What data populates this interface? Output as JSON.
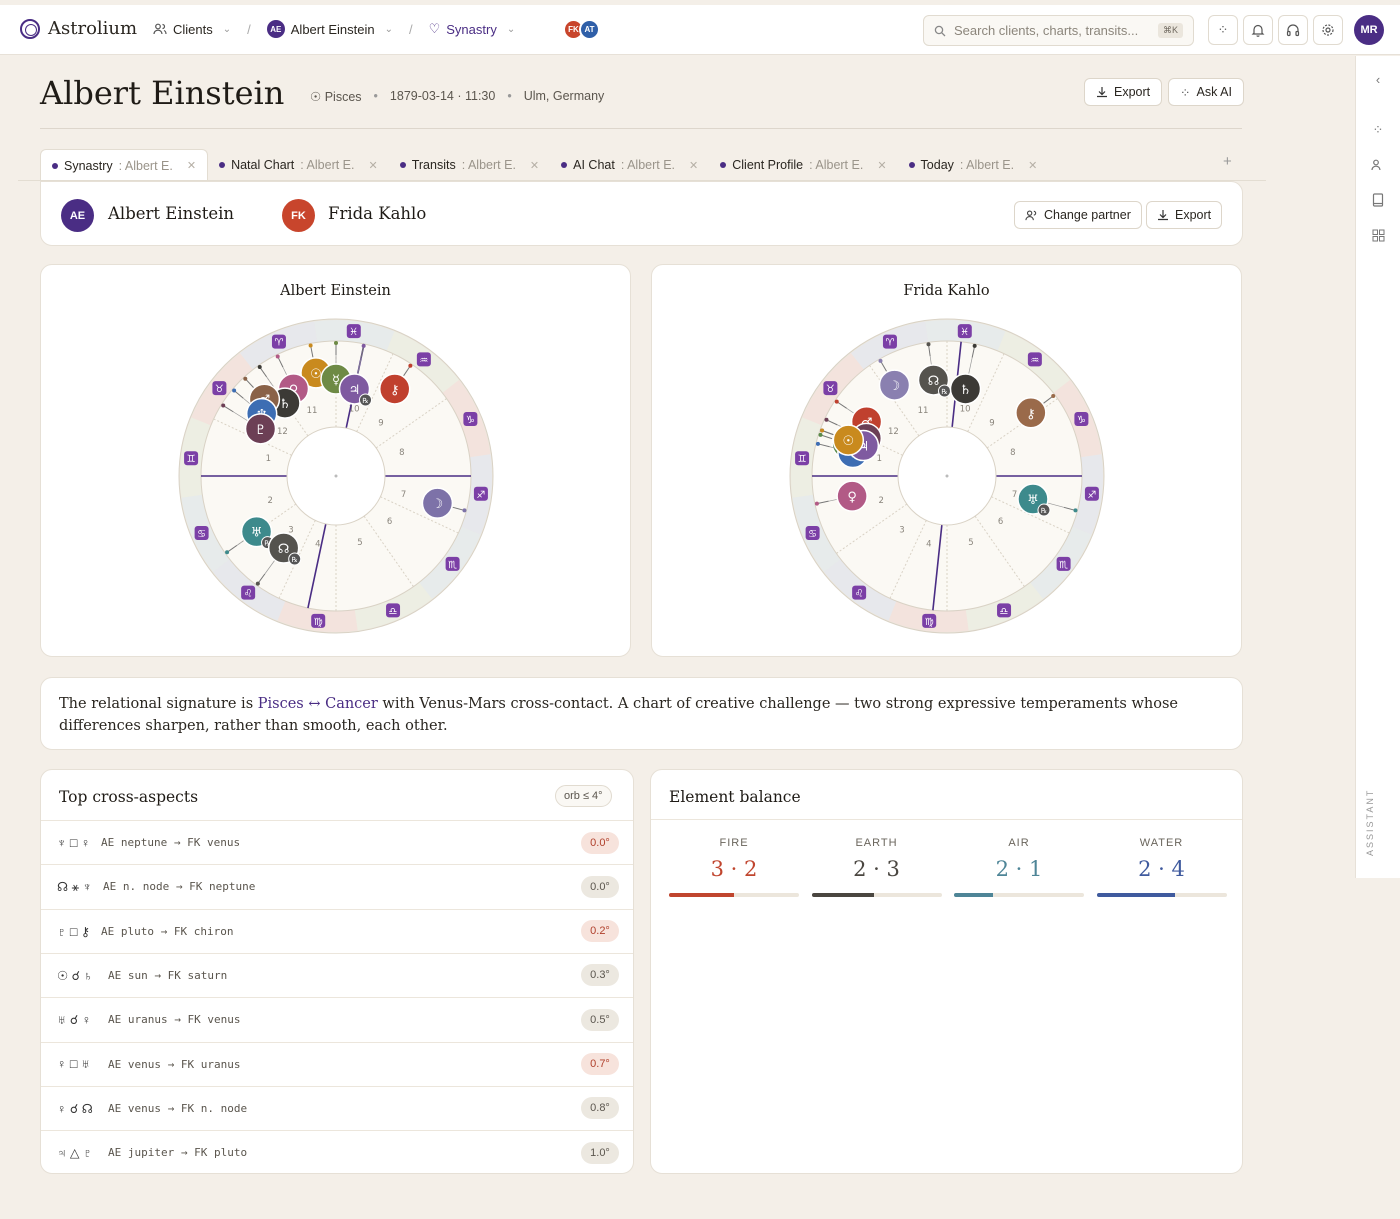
{
  "app": {
    "name": "Astrolium"
  },
  "breadcrumb": {
    "clients": "Clients",
    "client_initials": "AE",
    "client": "Albert Einstein",
    "view": "Synastry"
  },
  "header_pair": {
    "a": "FK",
    "b": "AT",
    "a_color": "#c8452c",
    "b_color": "#2f5fa8"
  },
  "search": {
    "placeholder": "Search clients, charts, transits...",
    "shortcut": "⌘K"
  },
  "user": {
    "initials": "MR"
  },
  "rail": {
    "label": "ASSISTANT"
  },
  "page": {
    "title": "Albert Einstein",
    "sign": "Pisces",
    "datetime": "1879-03-14 · 11:30",
    "place": "Ulm, Germany",
    "export": "Export",
    "ask_ai": "Ask AI"
  },
  "tabs": [
    {
      "label": "Synastry",
      "sub": ": Albert E."
    },
    {
      "label": "Natal Chart",
      "sub": ": Albert E."
    },
    {
      "label": "Transits",
      "sub": ": Albert E."
    },
    {
      "label": "AI Chat",
      "sub": ": Albert E."
    },
    {
      "label": "Client Profile",
      "sub": ": Albert E."
    },
    {
      "label": "Today",
      "sub": ": Albert E."
    }
  ],
  "synastry": {
    "person_a": {
      "initials": "AE",
      "name": "Albert Einstein",
      "color": "#4a2d84"
    },
    "person_b": {
      "initials": "FK",
      "name": "Frida Kahlo",
      "color": "#c8452c"
    },
    "change_partner": "Change partner",
    "export": "Export"
  },
  "charts": [
    {
      "title": "Albert Einstein",
      "mc_angle": 78,
      "ic_angle": 258,
      "planets": [
        {
          "glyph": "☉",
          "lon": 101,
          "color": "#c98a1e",
          "retro": false
        },
        {
          "glyph": "☿",
          "lon": 90,
          "color": "#6e8a45",
          "retro": false
        },
        {
          "glyph": "♃",
          "lon": 78,
          "color": "#7f5aa0",
          "retro": true
        },
        {
          "glyph": "⚷",
          "lon": 56,
          "color": "#c0402e",
          "retro": false
        },
        {
          "glyph": "♀",
          "lon": 116,
          "color": "#b25a86",
          "retro": false
        },
        {
          "glyph": "♄",
          "lon": 125,
          "color": "#3c3a36",
          "retro": false
        },
        {
          "glyph": "♂",
          "lon": 133,
          "color": "#8a6248",
          "retro": false
        },
        {
          "glyph": "♆",
          "lon": 140,
          "color": "#3d6db3",
          "retro": false
        },
        {
          "glyph": "♇",
          "lon": 148,
          "color": "#6c3f55",
          "retro": false
        },
        {
          "glyph": "☽",
          "lon": 345,
          "color": "#7d72a8",
          "retro": false
        },
        {
          "glyph": "♅",
          "lon": 215,
          "color": "#3d8a8c",
          "retro": true
        },
        {
          "glyph": "☊",
          "lon": 234,
          "color": "#55534e",
          "retro": true
        }
      ]
    },
    {
      "title": "Frida Kahlo",
      "mc_angle": 84,
      "ic_angle": 264,
      "planets": [
        {
          "glyph": "☽",
          "lon": 120,
          "color": "#8a80b0",
          "retro": false
        },
        {
          "glyph": "☊",
          "lon": 98,
          "color": "#55534e",
          "retro": true
        },
        {
          "glyph": "♄",
          "lon": 78,
          "color": "#3c3a36",
          "retro": false
        },
        {
          "glyph": "⚷",
          "lon": 37,
          "color": "#9a6a4a",
          "retro": false
        },
        {
          "glyph": "♂",
          "lon": 146,
          "color": "#c0402e",
          "retro": false
        },
        {
          "glyph": "♇",
          "lon": 155,
          "color": "#6c3f55",
          "retro": false
        },
        {
          "glyph": "☿",
          "lon": 162,
          "color": "#5a8a4a",
          "retro": false
        },
        {
          "glyph": "♆",
          "lon": 166,
          "color": "#3d6db3",
          "retro": false
        },
        {
          "glyph": "♃",
          "lon": 160,
          "color": "#7f5aa0",
          "retro": false
        },
        {
          "glyph": "☉",
          "lon": 160,
          "color": "#c98a1e",
          "retro": false
        },
        {
          "glyph": "♀",
          "lon": 192,
          "color": "#b25a86",
          "retro": false
        },
        {
          "glyph": "♅",
          "lon": 345,
          "color": "#3d8a8c",
          "retro": true
        }
      ]
    }
  ],
  "signature": {
    "pre": "The relational signature is ",
    "a": "Pisces",
    "arrow": " ↔ ",
    "b": "Cancer",
    "post": " with Venus-Mars cross-contact. A chart of creative challenge — two strong expressive temperaments whose differences sharpen, rather than smooth, each other."
  },
  "aspects": {
    "title": "Top cross-aspects",
    "orb_filter": "orb ≤ 4°",
    "rows": [
      {
        "glyphs": "♆ □ ♀",
        "text": "AE neptune → FK venus",
        "orb": "0.0°",
        "hot": true
      },
      {
        "glyphs": "☊ ⚹ ♆",
        "text": "AE n. node → FK neptune",
        "orb": "0.0°",
        "hot": false
      },
      {
        "glyphs": "♇ □ ⚷",
        "text": "AE pluto → FK chiron",
        "orb": "0.2°",
        "hot": true
      },
      {
        "glyphs": "☉ ☌ ♄",
        "text": "AE sun → FK saturn",
        "orb": "0.3°",
        "hot": false
      },
      {
        "glyphs": "♅ ☌ ♀",
        "text": "AE uranus → FK venus",
        "orb": "0.5°",
        "hot": false
      },
      {
        "glyphs": "♀ □ ♅",
        "text": "AE venus → FK uranus",
        "orb": "0.7°",
        "hot": true
      },
      {
        "glyphs": "♀ ☌ ☊",
        "text": "AE venus → FK n. node",
        "orb": "0.8°",
        "hot": false
      },
      {
        "glyphs": "♃ △ ♇",
        "text": "AE jupiter → FK pluto",
        "orb": "1.0°",
        "hot": false
      }
    ]
  },
  "elements": {
    "title": "Element balance",
    "items": [
      {
        "label": "FIRE",
        "value": "3 · 2",
        "color": "#c0452e",
        "fill": 0.5
      },
      {
        "label": "EARTH",
        "value": "2 · 3",
        "color": "#4a4640",
        "fill": 0.48
      },
      {
        "label": "AIR",
        "value": "2 · 1",
        "color": "#4e8597",
        "fill": 0.3
      },
      {
        "label": "WATER",
        "value": "2 · 4",
        "color": "#3f5a9e",
        "fill": 0.6
      }
    ]
  }
}
